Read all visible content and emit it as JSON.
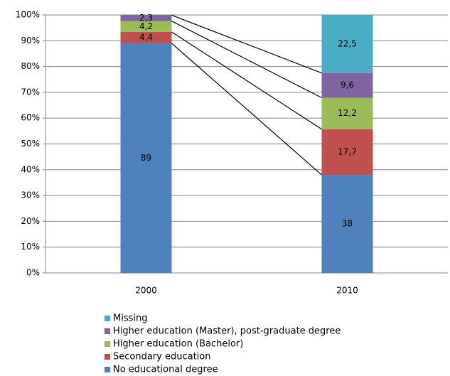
{
  "chart_data": {
    "type": "stacked-bar",
    "categories": [
      "2000",
      "2010"
    ],
    "series": [
      {
        "name": "No educational degree",
        "color": "#4f81bd",
        "values": [
          89,
          38
        ],
        "value_labels": [
          "89",
          "38"
        ]
      },
      {
        "name": "Secondary education",
        "color": "#c0504d",
        "values": [
          4.4,
          17.7
        ],
        "value_labels": [
          "4,4",
          "17,7"
        ]
      },
      {
        "name": "Higher education (Bachelor)",
        "color": "#9bbb59",
        "values": [
          4.2,
          12.2
        ],
        "value_labels": [
          "4,2",
          "12,2"
        ]
      },
      {
        "name": "Higher education (Master), post-graduate degree",
        "color": "#8064a2",
        "values": [
          2.3,
          9.6
        ],
        "value_labels": [
          "2,3",
          "9,6"
        ]
      },
      {
        "name": "Missing",
        "color": "#4bacc6",
        "values": [
          null,
          22.5
        ],
        "value_labels": [
          null,
          "22,5"
        ]
      }
    ],
    "ylim": [
      0,
      100
    ],
    "yticks": [
      {
        "value": 0,
        "label": "0%"
      },
      {
        "value": 10,
        "label": "10%"
      },
      {
        "value": 20,
        "label": "20%"
      },
      {
        "value": 30,
        "label": "30%"
      },
      {
        "value": 40,
        "label": "40%"
      },
      {
        "value": 50,
        "label": "50%"
      },
      {
        "value": 60,
        "label": "60%"
      },
      {
        "value": 70,
        "label": "70%"
      },
      {
        "value": 80,
        "label": "80%"
      },
      {
        "value": 90,
        "label": "90%"
      },
      {
        "value": 100,
        "label": "100%"
      }
    ],
    "grid": true,
    "legend": "bottom",
    "connectors": true
  }
}
